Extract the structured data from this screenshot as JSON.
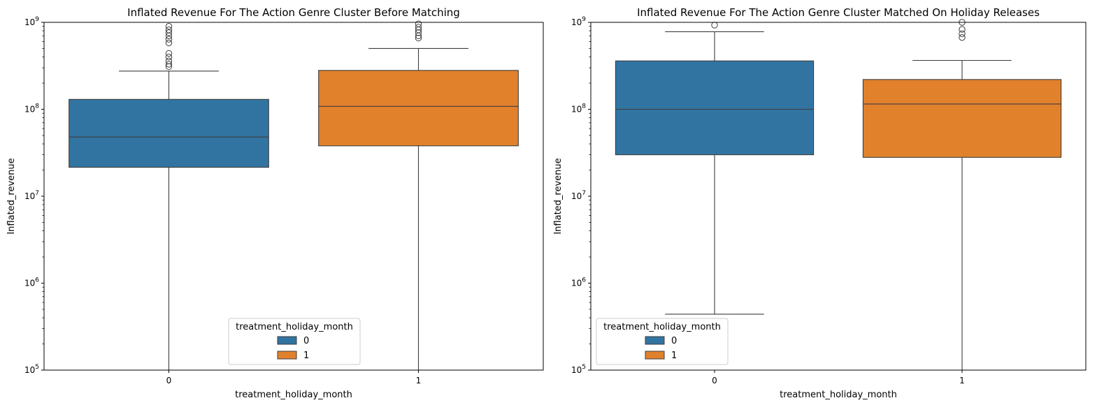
{
  "chart_data": [
    {
      "type": "box",
      "title": "Inflated Revenue For The Action Genre Cluster Before Matching",
      "xlabel": "treatment_holiday_month",
      "ylabel": "Inflated_revenue",
      "yscale": "log",
      "ylim": [
        100000,
        1000000000
      ],
      "categories": [
        "0",
        "1"
      ],
      "legend": {
        "title": "treatment_holiday_month",
        "position": "lower center",
        "labels": [
          "0",
          "1"
        ]
      },
      "boxes": [
        {
          "category": "0",
          "color": "#3274a1",
          "whisker_low": 100000,
          "q1": 21500000,
          "median": 48000000,
          "q3": 130000000,
          "whisker_high": 275000000,
          "outliers": [
            310000000,
            330000000,
            360000000,
            400000000,
            440000000,
            580000000,
            640000000,
            700000000,
            760000000,
            820000000,
            900000000
          ]
        },
        {
          "category": "1",
          "color": "#e1812c",
          "whisker_low": 100000,
          "q1": 38000000,
          "median": 108000000,
          "q3": 280000000,
          "whisker_high": 500000000,
          "outliers": [
            660000000,
            700000000,
            760000000,
            820000000,
            880000000,
            960000000
          ]
        }
      ]
    },
    {
      "type": "box",
      "title": "Inflated Revenue For The Action Genre Cluster Matched On Holiday Releases",
      "xlabel": "treatment_holiday_month",
      "ylabel": "Inflated_revenue",
      "yscale": "log",
      "ylim": [
        100000,
        1000000000
      ],
      "categories": [
        "0",
        "1"
      ],
      "legend": {
        "title": "treatment_holiday_month",
        "position": "lower left",
        "labels": [
          "0",
          "1"
        ]
      },
      "boxes": [
        {
          "category": "0",
          "color": "#3274a1",
          "whisker_low": 440000,
          "q1": 30000000,
          "median": 100000000,
          "q3": 360000000,
          "whisker_high": 780000000,
          "outliers": [
            930000000
          ]
        },
        {
          "category": "1",
          "color": "#e1812c",
          "whisker_low": 100000,
          "q1": 28000000,
          "median": 115000000,
          "q3": 220000000,
          "whisker_high": 365000000,
          "outliers": [
            670000000,
            740000000,
            830000000,
            1000000000
          ]
        }
      ]
    }
  ]
}
